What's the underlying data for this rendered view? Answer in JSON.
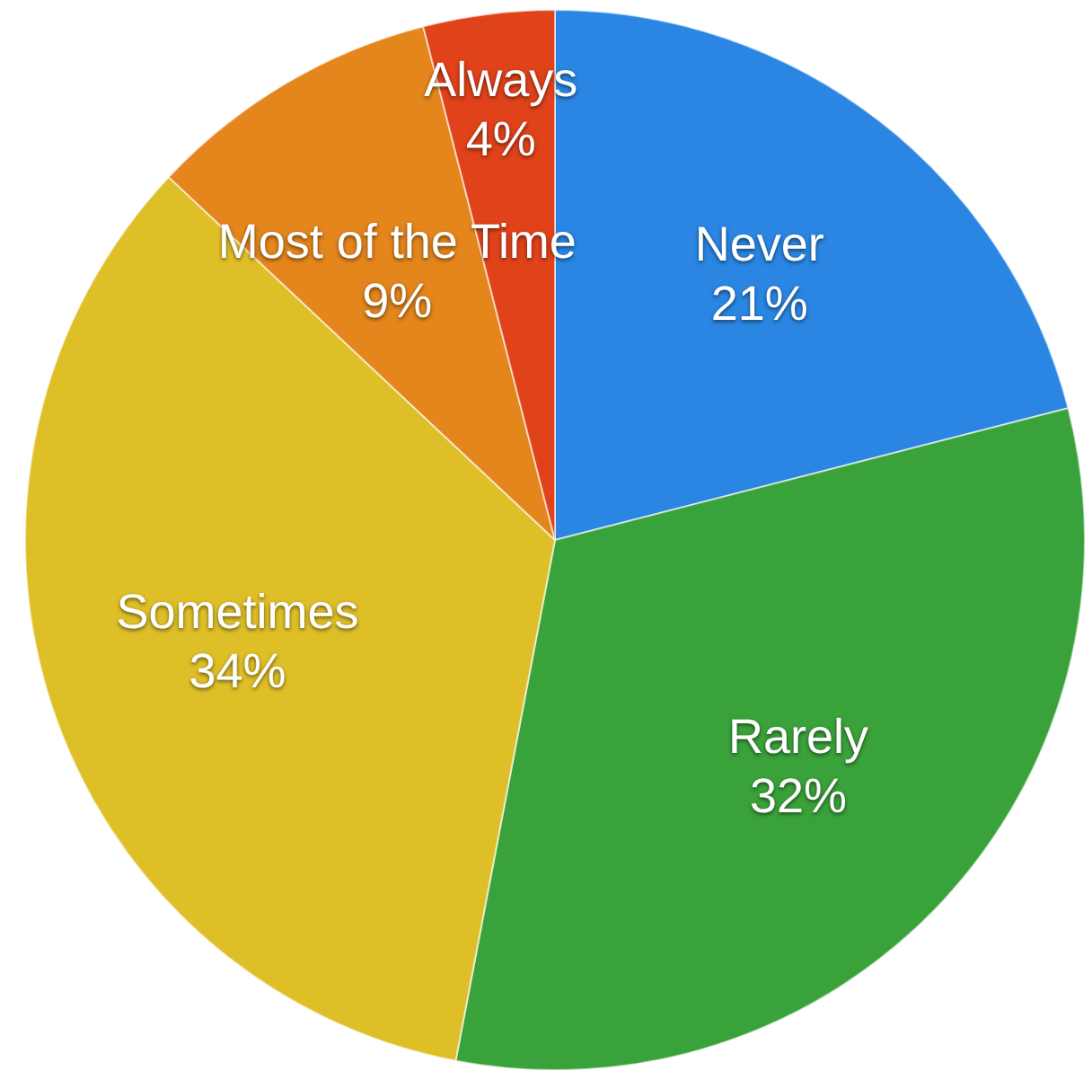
{
  "chart_data": {
    "type": "pie",
    "categories": [
      "Never",
      "Rarely",
      "Sometimes",
      "Most of the Time",
      "Always"
    ],
    "values": [
      21,
      32,
      34,
      9,
      4
    ],
    "colors": [
      "#2a86e2",
      "#3aa23a",
      "#dfbf28",
      "#e4861c",
      "#e0421a"
    ],
    "value_labels": [
      "21%",
      "32%",
      "34%",
      "9%",
      "4%"
    ]
  }
}
